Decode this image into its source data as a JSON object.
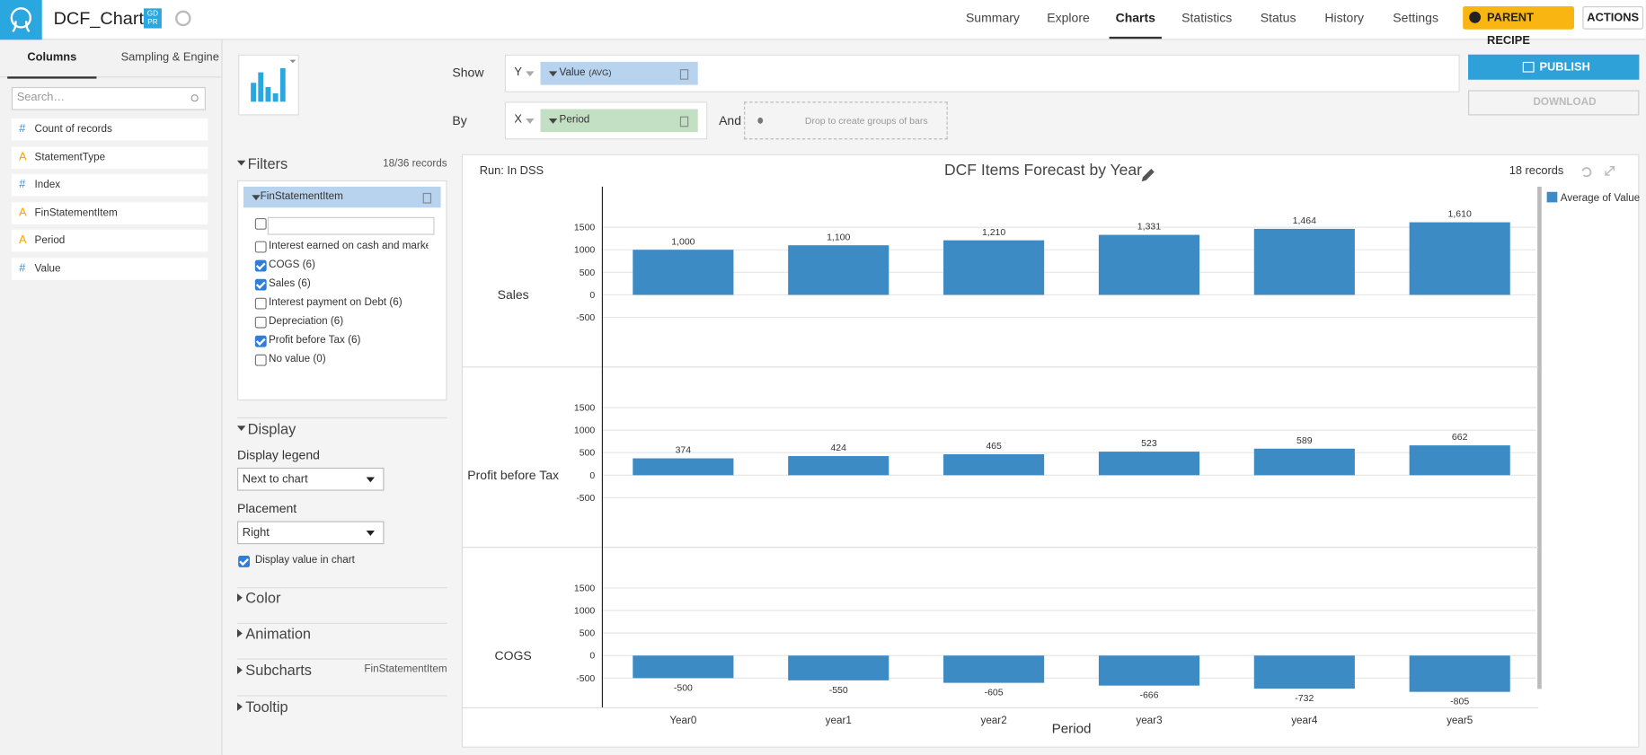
{
  "header": {
    "title": "DCF_Chart",
    "badge": [
      "GD",
      "PR"
    ],
    "nav": [
      {
        "label": "Summary",
        "active": false
      },
      {
        "label": "Explore",
        "active": false
      },
      {
        "label": "Charts",
        "active": true
      },
      {
        "label": "Statistics",
        "active": false
      },
      {
        "label": "Status",
        "active": false
      },
      {
        "label": "History",
        "active": false
      },
      {
        "label": "Settings",
        "active": false
      }
    ],
    "parent_recipe": "PARENT RECIPE",
    "actions": "ACTIONS"
  },
  "sidebar": {
    "tabs": [
      {
        "label": "Columns",
        "active": true
      },
      {
        "label": "Sampling & Engine",
        "active": false
      }
    ],
    "search_placeholder": "Search…",
    "columns": [
      {
        "icon": "#",
        "name": "Count of records"
      },
      {
        "icon": "A",
        "name": "StatementType"
      },
      {
        "icon": "#",
        "name": "Index"
      },
      {
        "icon": "A",
        "name": "FinStatementItem"
      },
      {
        "icon": "A",
        "name": "Period"
      },
      {
        "icon": "#",
        "name": "Value"
      }
    ]
  },
  "shelf": {
    "show_label": "Show",
    "y_axis": "Y",
    "y_measure": "Value",
    "y_agg": "(AVG)",
    "by_label": "By",
    "x_axis": "X",
    "x_dimension": "Period",
    "and_label": "And",
    "drop_hint": "Drop to create groups of bars",
    "publish": "PUBLISH",
    "download": "DOWNLOAD"
  },
  "filters": {
    "title": "Filters",
    "records": "18/36 records",
    "field": "FinStatementItem",
    "items": [
      {
        "label": "Interest earned on cash and marketa",
        "checked": false
      },
      {
        "label": "COGS (6)",
        "checked": true
      },
      {
        "label": "Sales (6)",
        "checked": true
      },
      {
        "label": "Interest payment on Debt (6)",
        "checked": false
      },
      {
        "label": "Depreciation (6)",
        "checked": false
      },
      {
        "label": "Profit before Tax (6)",
        "checked": true
      },
      {
        "label": "No value (0)",
        "checked": false
      }
    ]
  },
  "display": {
    "title": "Display",
    "legend_label": "Display legend",
    "legend_value": "Next to chart",
    "placement_label": "Placement",
    "placement_value": "Right",
    "value_in_chart_label": "Display value in chart",
    "value_in_chart": true
  },
  "sections": {
    "color": "Color",
    "animation": "Animation",
    "subcharts": "Subcharts",
    "subcharts_value": "FinStatementItem",
    "tooltip": "Tooltip"
  },
  "chart_data": {
    "type": "bar",
    "title": "DCF Items Forecast by Year",
    "run": "Run: In DSS",
    "records": "18 records",
    "legend": "Average of Value",
    "x_label": "Period",
    "color": "#3d8bc4",
    "categories": [
      "Year0",
      "year1",
      "year2",
      "year3",
      "year4",
      "year5"
    ],
    "ylim": [
      -1600,
      2400
    ],
    "yticks": [
      -500,
      0,
      500,
      1000,
      1500
    ],
    "grid": true,
    "facets": [
      {
        "name": "Sales",
        "values": [
          1000,
          1100,
          1210,
          1331,
          1464,
          1610
        ],
        "value_labels": [
          "1,000",
          "1,100",
          "1,210",
          "1,331",
          "1,464",
          "1,610"
        ]
      },
      {
        "name": "Profit before Tax",
        "values": [
          374,
          424,
          465,
          523,
          589,
          662
        ]
      },
      {
        "name": "COGS",
        "values": [
          -500,
          -550,
          -605,
          -666,
          -732,
          -805
        ]
      }
    ]
  }
}
